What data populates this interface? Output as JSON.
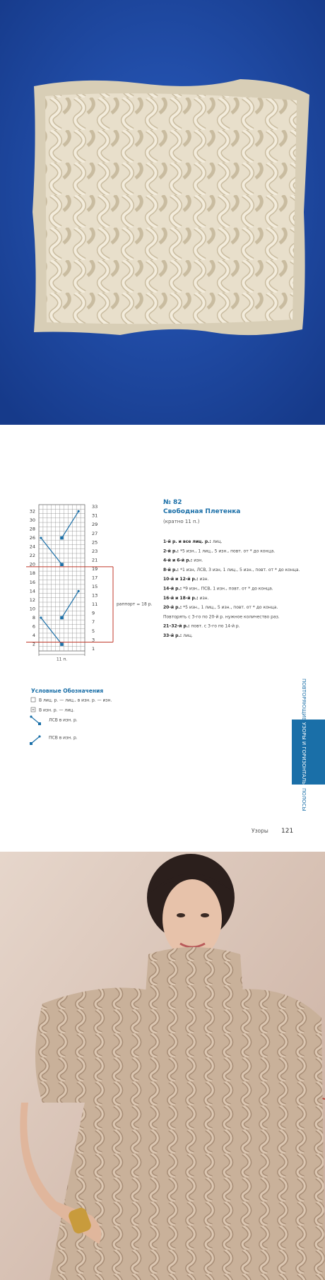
{
  "header": {
    "number": "№ 82",
    "title": "Свободная Плетенка",
    "multiple": "(кратно 11 п.)"
  },
  "chart": {
    "left_rows": [
      2,
      4,
      6,
      8,
      10,
      12,
      14,
      16,
      18,
      20,
      22,
      24,
      26,
      28,
      30,
      32
    ],
    "right_rows": [
      1,
      3,
      5,
      7,
      9,
      11,
      13,
      15,
      17,
      19,
      21,
      23,
      25,
      27,
      29,
      31,
      33
    ],
    "repeat_label": "раппорт = 18 р.",
    "width_label": "11 п."
  },
  "instructions": [
    {
      "label": "1-й р. и все лиц. р.:",
      "text": "лиц."
    },
    {
      "label": "2-й р.:",
      "text": "*5 изн., 1 лиц., 5 изн., повт. от * до конца."
    },
    {
      "label": "4-й и 6-й р.:",
      "text": "изн."
    },
    {
      "label": "8-й р.:",
      "text": "*1 изн, ЛСВ, 3 изн, 1 лиц., 5 изн., повт. от * до конца."
    },
    {
      "label": "10-й и 12-й р.:",
      "text": "изн."
    },
    {
      "label": "14-й р.:",
      "text": "*9 изн., ПСВ, 1 изн., повт. от * до конца."
    },
    {
      "label": "16-й и 18-й р.:",
      "text": "изн."
    },
    {
      "label": "20-й р.:",
      "text": "*5 изн., 1 лиц., 5 изн., повт. от * до конца."
    },
    {
      "text": "Повторять с 3-го по 20-й р. нужное количество раз."
    },
    {
      "label": "21–32-й р.:",
      "text": "повт. с 3-го по 14-й р."
    },
    {
      "label": "33-й р.:",
      "text": "лиц."
    }
  ],
  "legend": {
    "title": "Условные Обозначения",
    "items": [
      "В лиц. р. — лиц., в изн. р. — изн.",
      "В изн. р. — лиц.",
      "ЛСВ в изн. р.",
      "ПСВ в изн. р."
    ]
  },
  "side_tab": {
    "part1": "ПОВТОРЯЮЩИЕСЯ",
    "part2": "УЗОРЫ И ГОРИЗОНТАЛЬНЫЕ",
    "part3": "ПОЛОСЫ"
  },
  "footer": {
    "section": "Узоры",
    "page": "121"
  }
}
